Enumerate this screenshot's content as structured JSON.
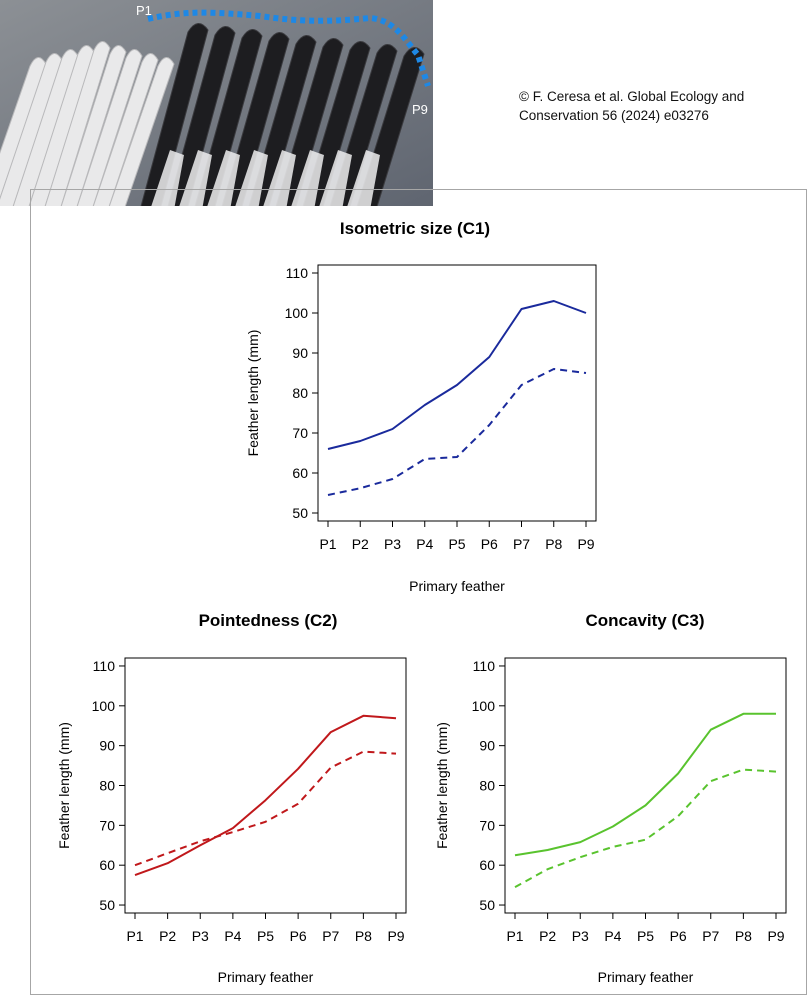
{
  "photo": {
    "labels": [
      "P1",
      "P9"
    ],
    "outline_color": "#1e88e5"
  },
  "credit": "© F. Ceresa et al. Global Ecology and Conservation 56 (2024) e03276",
  "chart_data": [
    {
      "type": "line",
      "title": "Isometric size (C1)",
      "xlabel": "Primary feather",
      "ylabel": "Feather length (mm)",
      "categories": [
        "P1",
        "P2",
        "P3",
        "P4",
        "P5",
        "P6",
        "P7",
        "P8",
        "P9"
      ],
      "ylim": [
        48,
        112
      ],
      "yticks": [
        50,
        60,
        70,
        80,
        90,
        100,
        110
      ],
      "color": "#1a2a9c",
      "grid": false,
      "legend": "none",
      "series": [
        {
          "style": "solid",
          "values": [
            66,
            68,
            71,
            77,
            82,
            89,
            101,
            103,
            100
          ]
        },
        {
          "style": "dashed",
          "values": [
            54.5,
            56.2,
            58.5,
            63.5,
            64,
            72,
            82,
            86,
            85
          ]
        }
      ]
    },
    {
      "type": "line",
      "title": "Pointedness (C2)",
      "xlabel": "Primary feather",
      "ylabel": "Feather length (mm)",
      "categories": [
        "P1",
        "P2",
        "P3",
        "P4",
        "P5",
        "P6",
        "P7",
        "P8",
        "P9"
      ],
      "ylim": [
        48,
        112
      ],
      "yticks": [
        50,
        60,
        70,
        80,
        90,
        100,
        110
      ],
      "color": "#c0181b",
      "grid": false,
      "legend": "none",
      "series": [
        {
          "style": "solid",
          "values": [
            57.5,
            60.5,
            65,
            69.3,
            76.3,
            84.2,
            93.4,
            97.5,
            96.9
          ]
        },
        {
          "style": "dashed",
          "values": [
            60,
            63,
            66,
            68.3,
            70.9,
            75.4,
            84.5,
            88.5,
            88
          ]
        }
      ]
    },
    {
      "type": "line",
      "title": "Concavity (C3)",
      "xlabel": "Primary feather",
      "ylabel": "Feather length (mm)",
      "categories": [
        "P1",
        "P2",
        "P3",
        "P4",
        "P5",
        "P6",
        "P7",
        "P8",
        "P9"
      ],
      "ylim": [
        48,
        112
      ],
      "yticks": [
        50,
        60,
        70,
        80,
        90,
        100,
        110
      ],
      "color": "#59c32e",
      "grid": false,
      "legend": "none",
      "series": [
        {
          "style": "solid",
          "values": [
            62.5,
            63.8,
            65.8,
            69.7,
            75,
            83,
            94,
            98,
            98
          ]
        },
        {
          "style": "dashed",
          "values": [
            54.5,
            59,
            62,
            64.6,
            66.4,
            72.3,
            81.1,
            84,
            83.5
          ]
        }
      ]
    }
  ]
}
